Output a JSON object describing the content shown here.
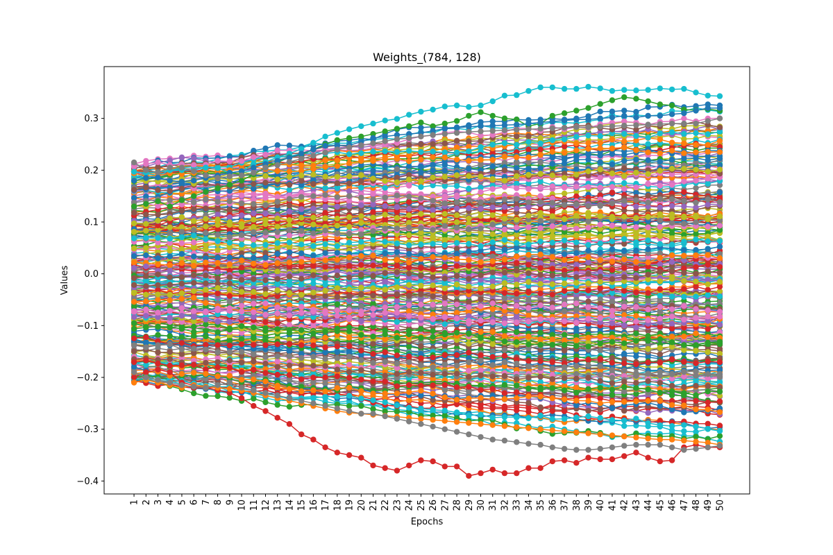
{
  "chart_data": {
    "type": "line",
    "title": "Weights_(784, 128)",
    "xlabel": "Epochs",
    "ylabel": "Values",
    "x": [
      1,
      2,
      3,
      4,
      5,
      6,
      7,
      8,
      9,
      10,
      11,
      12,
      13,
      14,
      15,
      16,
      17,
      18,
      19,
      20,
      21,
      22,
      23,
      24,
      25,
      26,
      27,
      28,
      29,
      30,
      31,
      32,
      33,
      34,
      35,
      36,
      37,
      38,
      39,
      40,
      41,
      42,
      43,
      44,
      45,
      46,
      47,
      48,
      49,
      50
    ],
    "xlim": [
      -1.5,
      52.5
    ],
    "ylim": [
      -0.425,
      0.4
    ],
    "yticks": [
      -0.4,
      -0.3,
      -0.2,
      -0.1,
      0.0,
      0.1,
      0.2,
      0.3
    ],
    "ytick_labels": [
      "−0.4",
      "−0.3",
      "−0.2",
      "−0.1",
      "0.0",
      "0.1",
      "0.2",
      "0.3"
    ],
    "markers": true,
    "grid": false,
    "legend": "none",
    "palette": [
      "#1f77b4",
      "#ff7f0e",
      "#2ca02c",
      "#d62728",
      "#9467bd",
      "#8c564b",
      "#e377c2",
      "#7f7f7f",
      "#bcbd22",
      "#17becf"
    ],
    "series_count_note_hidden": false,
    "series": [
      {
        "values": [
          0.197,
          0.195,
          0.196,
          0.2,
          0.2,
          0.2,
          0.205,
          0.204,
          0.195,
          0.198,
          0.212,
          0.216,
          0.225,
          0.232,
          0.241,
          0.253,
          0.265,
          0.272,
          0.279,
          0.285,
          0.29,
          0.296,
          0.299,
          0.307,
          0.313,
          0.317,
          0.323,
          0.325,
          0.322,
          0.325,
          0.333,
          0.344,
          0.345,
          0.353,
          0.36,
          0.36,
          0.357,
          0.357,
          0.361,
          0.358,
          0.353,
          0.355,
          0.354,
          0.355,
          0.358,
          0.356,
          0.357,
          0.35,
          0.344,
          0.343
        ]
      },
      {
        "values": [
          0.13,
          0.135,
          0.14,
          0.13,
          0.142,
          0.15,
          0.158,
          0.165,
          0.172,
          0.18,
          0.192,
          0.205,
          0.215,
          0.225,
          0.23,
          0.24,
          0.25,
          0.258,
          0.262,
          0.265,
          0.27,
          0.275,
          0.28,
          0.285,
          0.292,
          0.285,
          0.29,
          0.295,
          0.305,
          0.312,
          0.305,
          0.3,
          0.298,
          0.285,
          0.29,
          0.305,
          0.31,
          0.315,
          0.32,
          0.328,
          0.335,
          0.341,
          0.338,
          0.333,
          0.327,
          0.325,
          0.317,
          0.316,
          0.318,
          0.315
        ]
      },
      {
        "values": [
          0.18,
          0.185,
          0.186,
          0.18,
          0.178,
          0.18,
          0.185,
          0.19,
          0.195,
          0.198,
          0.205,
          0.212,
          0.218,
          0.224,
          0.232,
          0.24,
          0.247,
          0.248,
          0.248,
          0.255,
          0.262,
          0.265,
          0.268,
          0.27,
          0.272,
          0.276,
          0.28,
          0.282,
          0.284,
          0.285,
          0.286,
          0.287,
          0.288,
          0.29,
          0.292,
          0.294,
          0.296,
          0.298,
          0.298,
          0.3,
          0.302,
          0.305,
          0.302,
          0.305,
          0.305,
          0.308,
          0.31,
          0.315,
          0.32,
          0.32
        ]
      },
      {
        "values": [
          -0.2,
          -0.19,
          -0.185,
          -0.19,
          -0.21,
          -0.215,
          -0.22,
          -0.225,
          -0.23,
          -0.24,
          -0.255,
          -0.265,
          -0.278,
          -0.29,
          -0.31,
          -0.32,
          -0.335,
          -0.345,
          -0.35,
          -0.355,
          -0.37,
          -0.375,
          -0.38,
          -0.37,
          -0.36,
          -0.362,
          -0.372,
          -0.372,
          -0.39,
          -0.385,
          -0.378,
          -0.385,
          -0.385,
          -0.375,
          -0.375,
          -0.362,
          -0.36,
          -0.365,
          -0.355,
          -0.358,
          -0.358,
          -0.352,
          -0.345,
          -0.355,
          -0.362,
          -0.36,
          -0.335,
          -0.33,
          -0.335,
          -0.335
        ]
      },
      {
        "values": [
          0.215,
          0.2,
          0.196,
          0.205,
          0.205,
          0.198,
          0.19,
          0.185,
          0.188,
          0.19,
          0.195,
          0.205,
          0.21,
          0.216,
          0.222,
          0.228,
          0.234,
          0.24,
          0.244,
          0.248,
          0.252,
          0.256,
          0.26,
          0.262,
          0.265,
          0.268,
          0.27,
          0.272,
          0.274,
          0.275,
          0.276,
          0.277,
          0.278,
          0.279,
          0.28,
          0.281,
          0.282,
          0.283,
          0.283,
          0.284,
          0.285,
          0.286,
          0.287,
          0.288,
          0.289,
          0.29,
          0.29,
          0.29,
          0.295,
          0.3
        ]
      },
      {
        "values": [
          -0.21,
          -0.205,
          -0.21,
          -0.215,
          -0.22,
          -0.215,
          -0.218,
          -0.22,
          -0.222,
          -0.225,
          -0.23,
          -0.235,
          -0.24,
          -0.245,
          -0.25,
          -0.255,
          -0.26,
          -0.265,
          -0.268,
          -0.27,
          -0.272,
          -0.274,
          -0.276,
          -0.278,
          -0.28,
          -0.282,
          -0.284,
          -0.286,
          -0.288,
          -0.29,
          -0.292,
          -0.294,
          -0.296,
          -0.298,
          -0.3,
          -0.302,
          -0.304,
          -0.306,
          -0.308,
          -0.31,
          -0.312,
          -0.314,
          -0.316,
          -0.318,
          -0.32,
          -0.32,
          -0.322,
          -0.324,
          -0.326,
          -0.33
        ]
      },
      {
        "values": [
          -0.19,
          -0.2,
          -0.205,
          -0.21,
          -0.215,
          -0.218,
          -0.22,
          -0.215,
          -0.21,
          -0.22,
          -0.225,
          -0.23,
          -0.235,
          -0.24,
          -0.245,
          -0.25,
          -0.255,
          -0.26,
          -0.265,
          -0.27,
          -0.27,
          -0.275,
          -0.28,
          -0.285,
          -0.29,
          -0.295,
          -0.3,
          -0.305,
          -0.31,
          -0.315,
          -0.32,
          -0.322,
          -0.325,
          -0.328,
          -0.33,
          -0.335,
          -0.338,
          -0.34,
          -0.34,
          -0.338,
          -0.335,
          -0.332,
          -0.33,
          -0.33,
          -0.33,
          -0.335,
          -0.34,
          -0.338,
          -0.335,
          -0.332
        ]
      }
    ]
  }
}
